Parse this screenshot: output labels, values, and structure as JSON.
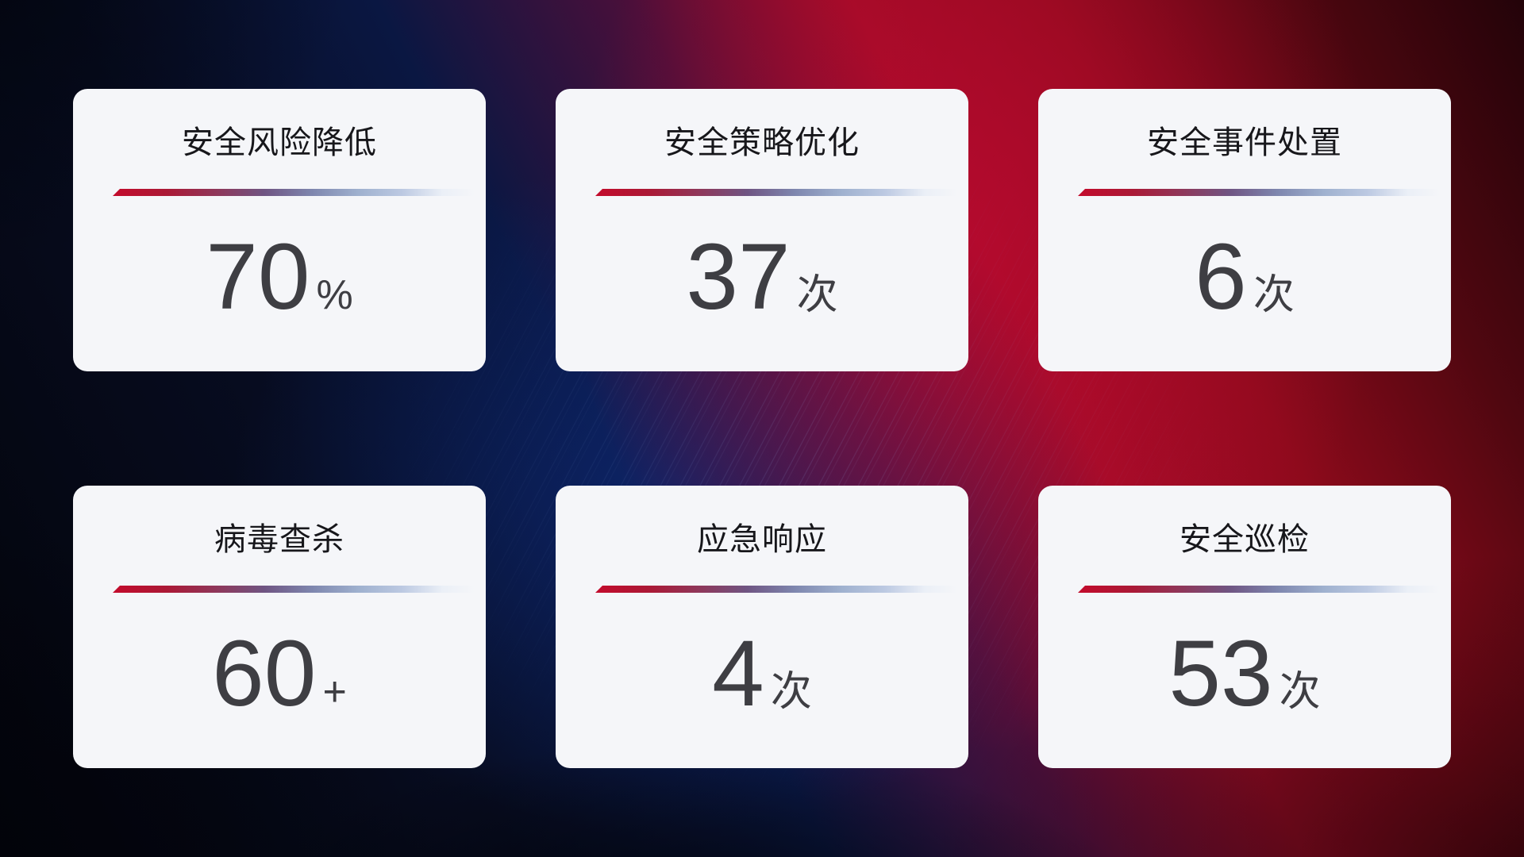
{
  "stats": [
    {
      "title": "安全风险降低",
      "value": "70",
      "unit": "%"
    },
    {
      "title": "安全策略优化",
      "value": "37",
      "unit": "次"
    },
    {
      "title": "安全事件处置",
      "value": "6",
      "unit": "次"
    },
    {
      "title": "病毒查杀",
      "value": "60",
      "unit": "+"
    },
    {
      "title": "应急响应",
      "value": "4",
      "unit": "次"
    },
    {
      "title": "安全巡检",
      "value": "53",
      "unit": "次"
    }
  ],
  "colors": {
    "card_background": "#f5f6f9",
    "title_text": "#17171b",
    "value_text": "#3e3e43",
    "divider_red": "#c30b2c",
    "divider_blue": "#bcc9e2",
    "background_blue": "#0d2a78",
    "background_red": "#a00c26",
    "background_dark": "#070a18"
  }
}
